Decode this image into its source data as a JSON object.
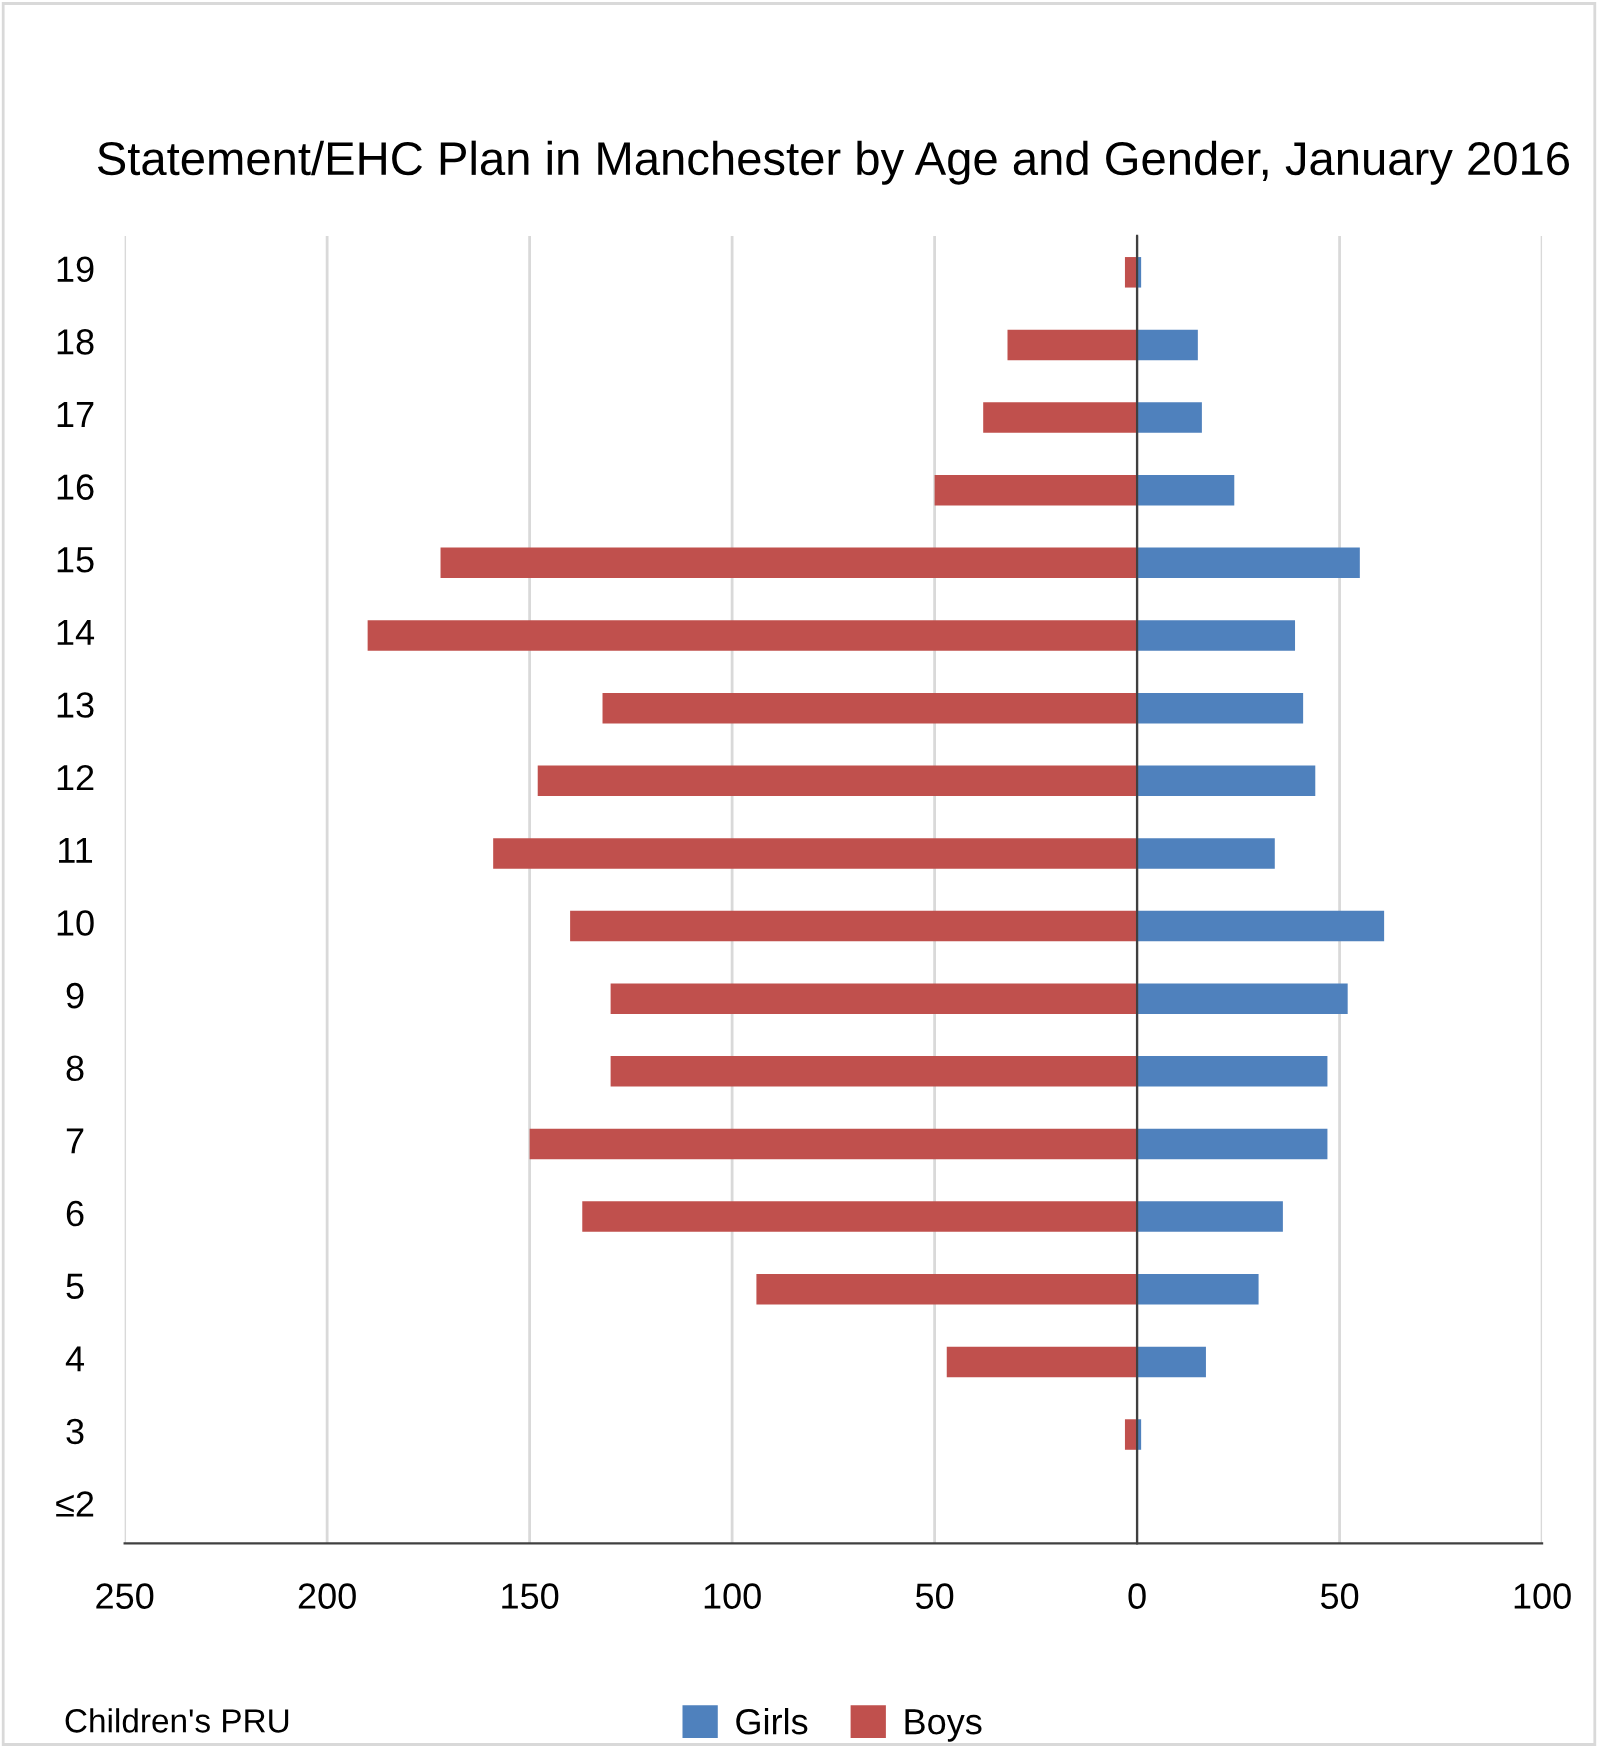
{
  "chart_data": {
    "type": "bar",
    "orientation": "horizontal",
    "title": "Statement/EHC Plan in Manchester by Age and Gender, January 2016",
    "categories": [
      "19",
      "18",
      "17",
      "16",
      "15",
      "14",
      "13",
      "12",
      "11",
      "10",
      "9",
      "8",
      "7",
      "6",
      "5",
      "4",
      "3",
      "≤2"
    ],
    "series": [
      {
        "name": "Girls",
        "color": "#4f81bd",
        "values": [
          1,
          15,
          16,
          24,
          55,
          39,
          41,
          44,
          34,
          61,
          52,
          47,
          47,
          36,
          30,
          17,
          1,
          0
        ]
      },
      {
        "name": "Boys",
        "color": "#c0504d",
        "values": [
          -3,
          -32,
          -38,
          -50,
          -172,
          -190,
          -132,
          -148,
          -159,
          -140,
          -130,
          -130,
          -150,
          -137,
          -94,
          -47,
          -3,
          0
        ]
      }
    ],
    "xlim": [
      -250,
      100
    ],
    "xticks": [
      {
        "value": -250,
        "label": "250"
      },
      {
        "value": -200,
        "label": "200"
      },
      {
        "value": -150,
        "label": "150"
      },
      {
        "value": -100,
        "label": "100"
      },
      {
        "value": -50,
        "label": "50"
      },
      0,
      50,
      100
    ],
    "grid": "x",
    "legend": "bottom",
    "stacked": true,
    "annotations": [
      "Children's PRU"
    ]
  }
}
